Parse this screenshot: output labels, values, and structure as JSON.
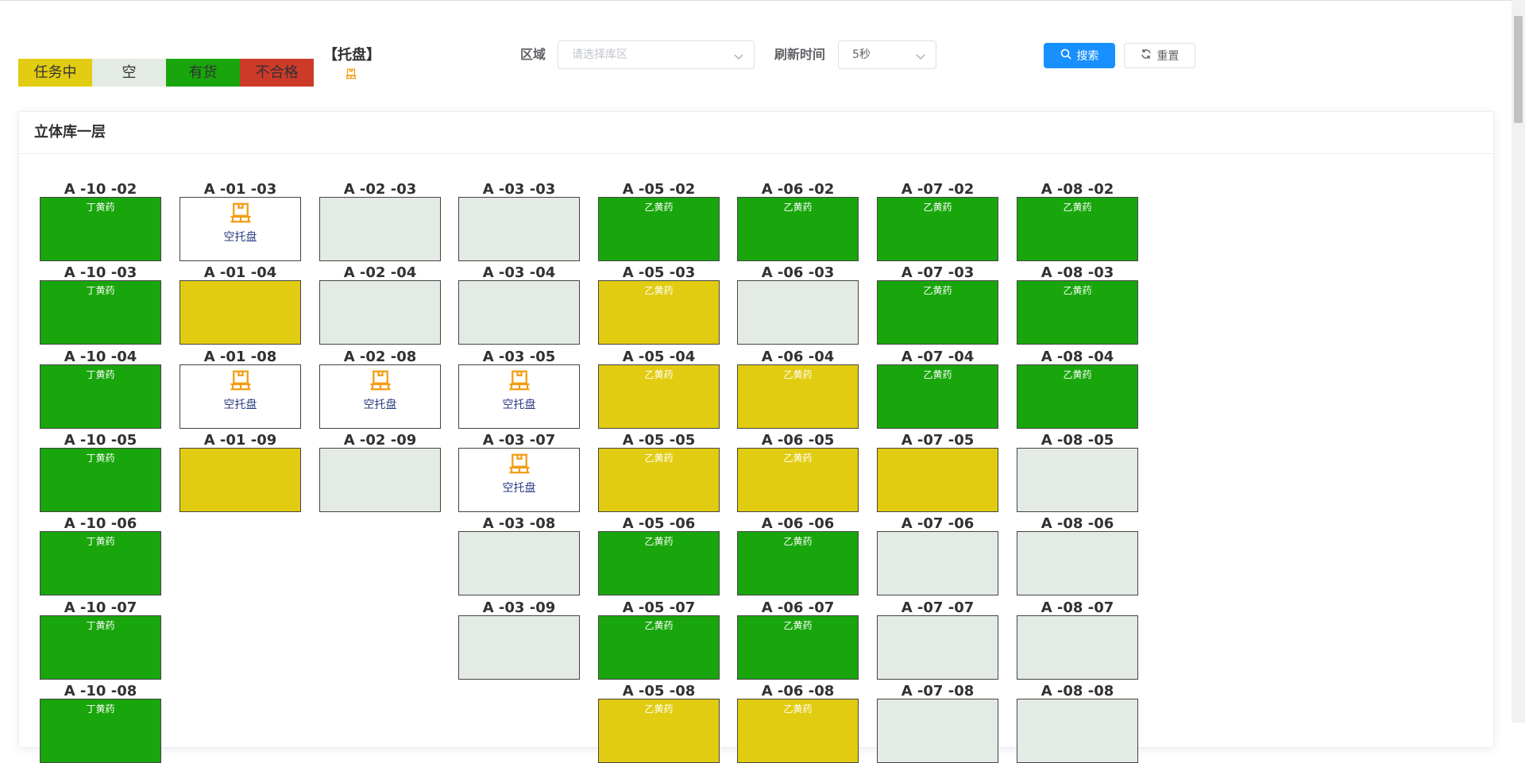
{
  "colors": {
    "task": "#e2cc12",
    "empty": "#e4eae4",
    "goods": "#19a60c",
    "bad": "#cd3a28",
    "tray_icon": "#f39c12"
  },
  "legend": [
    {
      "label": "任务中",
      "status": "task"
    },
    {
      "label": "空",
      "status": "empty"
    },
    {
      "label": "有货",
      "status": "goods"
    },
    {
      "label": "不合格",
      "status": "bad"
    }
  ],
  "tray_legend": {
    "label": "【托盘】",
    "icon": "pallet-icon"
  },
  "filters": {
    "area_label": "区域",
    "area_placeholder": "请选择库区",
    "refresh_label": "刷新时间",
    "refresh_value": "5秒",
    "search_label": "搜索",
    "reset_label": "重置"
  },
  "panel": {
    "title": "立体库一层"
  },
  "columns": [
    [
      {
        "code": "A -10 -02",
        "status": "goods",
        "text": "丁黄药"
      },
      {
        "code": "A -10 -03",
        "status": "goods",
        "text": "丁黄药"
      },
      {
        "code": "A -10 -04",
        "status": "goods",
        "text": "丁黄药"
      },
      {
        "code": "A -10 -05",
        "status": "goods",
        "text": "丁黄药"
      },
      {
        "code": "A -10 -06",
        "status": "goods",
        "text": "丁黄药"
      },
      {
        "code": "A -10 -07",
        "status": "goods",
        "text": "丁黄药"
      },
      {
        "code": "A -10 -08",
        "status": "goods",
        "text": "丁黄药"
      }
    ],
    [
      {
        "code": "A -01 -03",
        "status": "tray",
        "text": "空托盘"
      },
      {
        "code": "A -01 -04",
        "status": "task",
        "text": ""
      },
      {
        "code": "A -01 -08",
        "status": "tray",
        "text": "空托盘"
      },
      {
        "code": "A -01 -09",
        "status": "task",
        "text": ""
      }
    ],
    [
      {
        "code": "A -02 -03",
        "status": "empty",
        "text": ""
      },
      {
        "code": "A -02 -04",
        "status": "empty",
        "text": ""
      },
      {
        "code": "A -02 -08",
        "status": "tray",
        "text": "空托盘"
      },
      {
        "code": "A -02 -09",
        "status": "empty",
        "text": ""
      }
    ],
    [
      {
        "code": "A -03 -03",
        "status": "empty",
        "text": ""
      },
      {
        "code": "A -03 -04",
        "status": "empty",
        "text": ""
      },
      {
        "code": "A -03 -05",
        "status": "tray",
        "text": "空托盘"
      },
      {
        "code": "A -03 -07",
        "status": "tray",
        "text": "空托盘"
      },
      {
        "code": "A -03 -08",
        "status": "empty",
        "text": ""
      },
      {
        "code": "A -03 -09",
        "status": "empty",
        "text": ""
      }
    ],
    [
      {
        "code": "A -05 -02",
        "status": "goods",
        "text": "乙黄药"
      },
      {
        "code": "A -05 -03",
        "status": "task",
        "text": "乙黄药"
      },
      {
        "code": "A -05 -04",
        "status": "task",
        "text": "乙黄药"
      },
      {
        "code": "A -05 -05",
        "status": "task",
        "text": "乙黄药"
      },
      {
        "code": "A -05 -06",
        "status": "goods",
        "text": "乙黄药"
      },
      {
        "code": "A -05 -07",
        "status": "goods",
        "text": "乙黄药"
      },
      {
        "code": "A -05 -08",
        "status": "task",
        "text": "乙黄药"
      }
    ],
    [
      {
        "code": "A -06 -02",
        "status": "goods",
        "text": "乙黄药"
      },
      {
        "code": "A -06 -03",
        "status": "empty",
        "text": ""
      },
      {
        "code": "A -06 -04",
        "status": "task",
        "text": "乙黄药"
      },
      {
        "code": "A -06 -05",
        "status": "task",
        "text": "乙黄药"
      },
      {
        "code": "A -06 -06",
        "status": "goods",
        "text": "乙黄药"
      },
      {
        "code": "A -06 -07",
        "status": "goods",
        "text": "乙黄药"
      },
      {
        "code": "A -06 -08",
        "status": "task",
        "text": "乙黄药"
      }
    ],
    [
      {
        "code": "A -07 -02",
        "status": "goods",
        "text": "乙黄药"
      },
      {
        "code": "A -07 -03",
        "status": "goods",
        "text": "乙黄药"
      },
      {
        "code": "A -07 -04",
        "status": "goods",
        "text": "乙黄药"
      },
      {
        "code": "A -07 -05",
        "status": "task",
        "text": ""
      },
      {
        "code": "A -07 -06",
        "status": "empty",
        "text": ""
      },
      {
        "code": "A -07 -07",
        "status": "empty",
        "text": ""
      },
      {
        "code": "A -07 -08",
        "status": "empty",
        "text": ""
      }
    ],
    [
      {
        "code": "A -08 -02",
        "status": "goods",
        "text": "乙黄药"
      },
      {
        "code": "A -08 -03",
        "status": "goods",
        "text": "乙黄药"
      },
      {
        "code": "A -08 -04",
        "status": "goods",
        "text": "乙黄药"
      },
      {
        "code": "A -08 -05",
        "status": "empty",
        "text": ""
      },
      {
        "code": "A -08 -06",
        "status": "empty",
        "text": ""
      },
      {
        "code": "A -08 -07",
        "status": "empty",
        "text": ""
      },
      {
        "code": "A -08 -08",
        "status": "empty",
        "text": ""
      }
    ]
  ]
}
